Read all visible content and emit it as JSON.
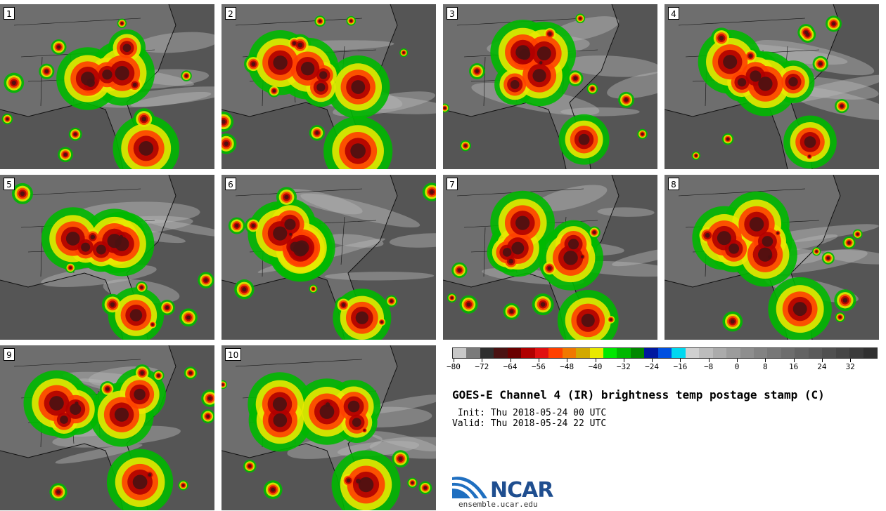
{
  "panels": [
    {
      "label": "1"
    },
    {
      "label": "2"
    },
    {
      "label": "3"
    },
    {
      "label": "4"
    },
    {
      "label": "5"
    },
    {
      "label": "6"
    },
    {
      "label": "7"
    },
    {
      "label": "8"
    },
    {
      "label": "9"
    },
    {
      "label": "10"
    }
  ],
  "title": "GOES-E Channel 4 (IR) brightness temp postage stamp (C)",
  "init": " Init: Thu 2018-05-24 00 UTC",
  "valid": "Valid: Thu 2018-05-24 22 UTC",
  "colorbar": {
    "tick_labels": [
      "-80",
      "-72",
      "-64",
      "-56",
      "-48",
      "-40",
      "-32",
      "-24",
      "-16",
      "-8",
      "0",
      "8",
      "16",
      "24",
      "32"
    ],
    "colors": [
      "#c8c8c8",
      "#7a7a7a",
      "#2e2e2e",
      "#4a1212",
      "#6a0000",
      "#b00000",
      "#e01010",
      "#ff4000",
      "#f07800",
      "#d2a800",
      "#e8e800",
      "#00e800",
      "#00b800",
      "#008800",
      "#0018a0",
      "#0050e0",
      "#00d8f0",
      "#d0d0d0",
      "#bcbcbc",
      "#ababab",
      "#9c9c9c",
      "#8e8e8e",
      "#828282",
      "#777777",
      "#6d6d6d",
      "#636363",
      "#5a5a5a",
      "#505050",
      "#464646",
      "#3b3b3b",
      "#303030"
    ]
  },
  "logo": {
    "text": "NCAR",
    "url": "ensemble.ucar.edu"
  },
  "map_style": {
    "ocean": "#555555",
    "land": "#6e6e6e",
    "cloud": "#b8b8b8",
    "border": "#111111"
  }
}
